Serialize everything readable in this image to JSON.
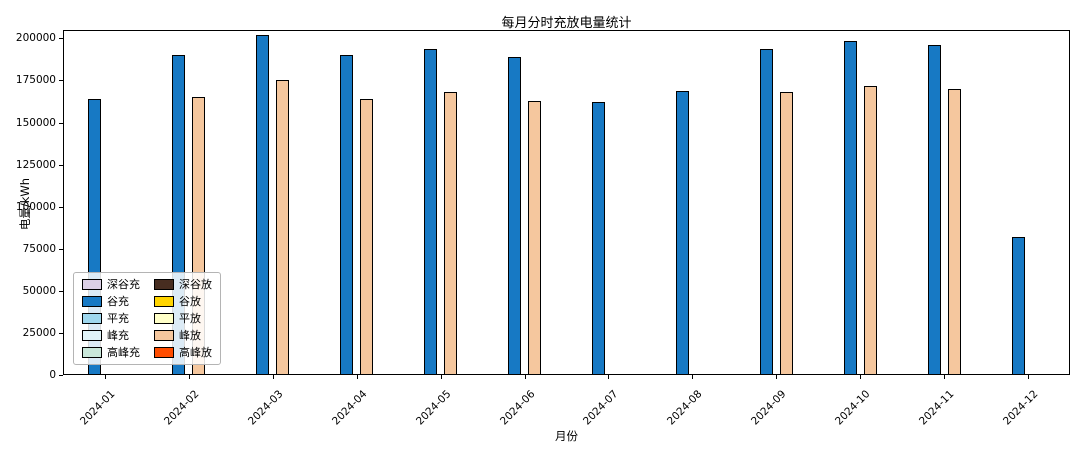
{
  "chart_data": {
    "type": "bar",
    "title": "每月分时充放电量统计",
    "xlabel": "月份",
    "ylabel": "电量/kWh",
    "ylim": [
      0,
      205000
    ],
    "yticks": [
      0,
      25000,
      50000,
      75000,
      100000,
      125000,
      150000,
      175000,
      200000
    ],
    "grid": false,
    "legend_position": "lower left",
    "legend_columns": 2,
    "categories": [
      "2024-01",
      "2024-02",
      "2024-03",
      "2024-04",
      "2024-05",
      "2024-06",
      "2024-07",
      "2024-08",
      "2024-09",
      "2024-10",
      "2024-11",
      "2024-12"
    ],
    "series": [
      {
        "name": "深谷充",
        "color": "#DCD0E6",
        "values": [
          0,
          0,
          0,
          0,
          0,
          0,
          0,
          0,
          0,
          0,
          0,
          0
        ]
      },
      {
        "name": "谷充",
        "color": "#1779C4",
        "values": [
          164000,
          190000,
          202000,
          190000,
          194000,
          189000,
          162000,
          168500,
          194000,
          198500,
          196000,
          82000
        ]
      },
      {
        "name": "平充",
        "color": "#9ED7EE",
        "values": [
          0,
          0,
          0,
          0,
          0,
          0,
          0,
          0,
          0,
          0,
          0,
          0
        ]
      },
      {
        "name": "峰充",
        "color": "#E0F3F8",
        "values": [
          0,
          0,
          0,
          0,
          0,
          0,
          0,
          0,
          0,
          0,
          0,
          0
        ]
      },
      {
        "name": "高峰充",
        "color": "#C9E7DA",
        "values": [
          0,
          0,
          0,
          0,
          0,
          0,
          0,
          0,
          0,
          0,
          0,
          0
        ]
      },
      {
        "name": "深谷放",
        "color": "#472D20",
        "values": [
          0,
          0,
          0,
          0,
          0,
          0,
          0,
          0,
          0,
          0,
          0,
          0
        ]
      },
      {
        "name": "谷放",
        "color": "#FFD400",
        "values": [
          0,
          0,
          0,
          0,
          0,
          0,
          0,
          0,
          0,
          0,
          0,
          0
        ]
      },
      {
        "name": "平放",
        "color": "#FFFFC8",
        "values": [
          0,
          0,
          0,
          0,
          0,
          0,
          0,
          0,
          0,
          0,
          0,
          0
        ]
      },
      {
        "name": "峰放",
        "color": "#F5C79E",
        "values": [
          0,
          165000,
          175000,
          164000,
          168000,
          163000,
          0,
          0,
          168000,
          172000,
          170000,
          0
        ]
      },
      {
        "name": "高峰放",
        "color": "#FF4D00",
        "values": [
          0,
          0,
          0,
          0,
          0,
          0,
          0,
          0,
          0,
          0,
          0,
          0
        ]
      }
    ]
  }
}
